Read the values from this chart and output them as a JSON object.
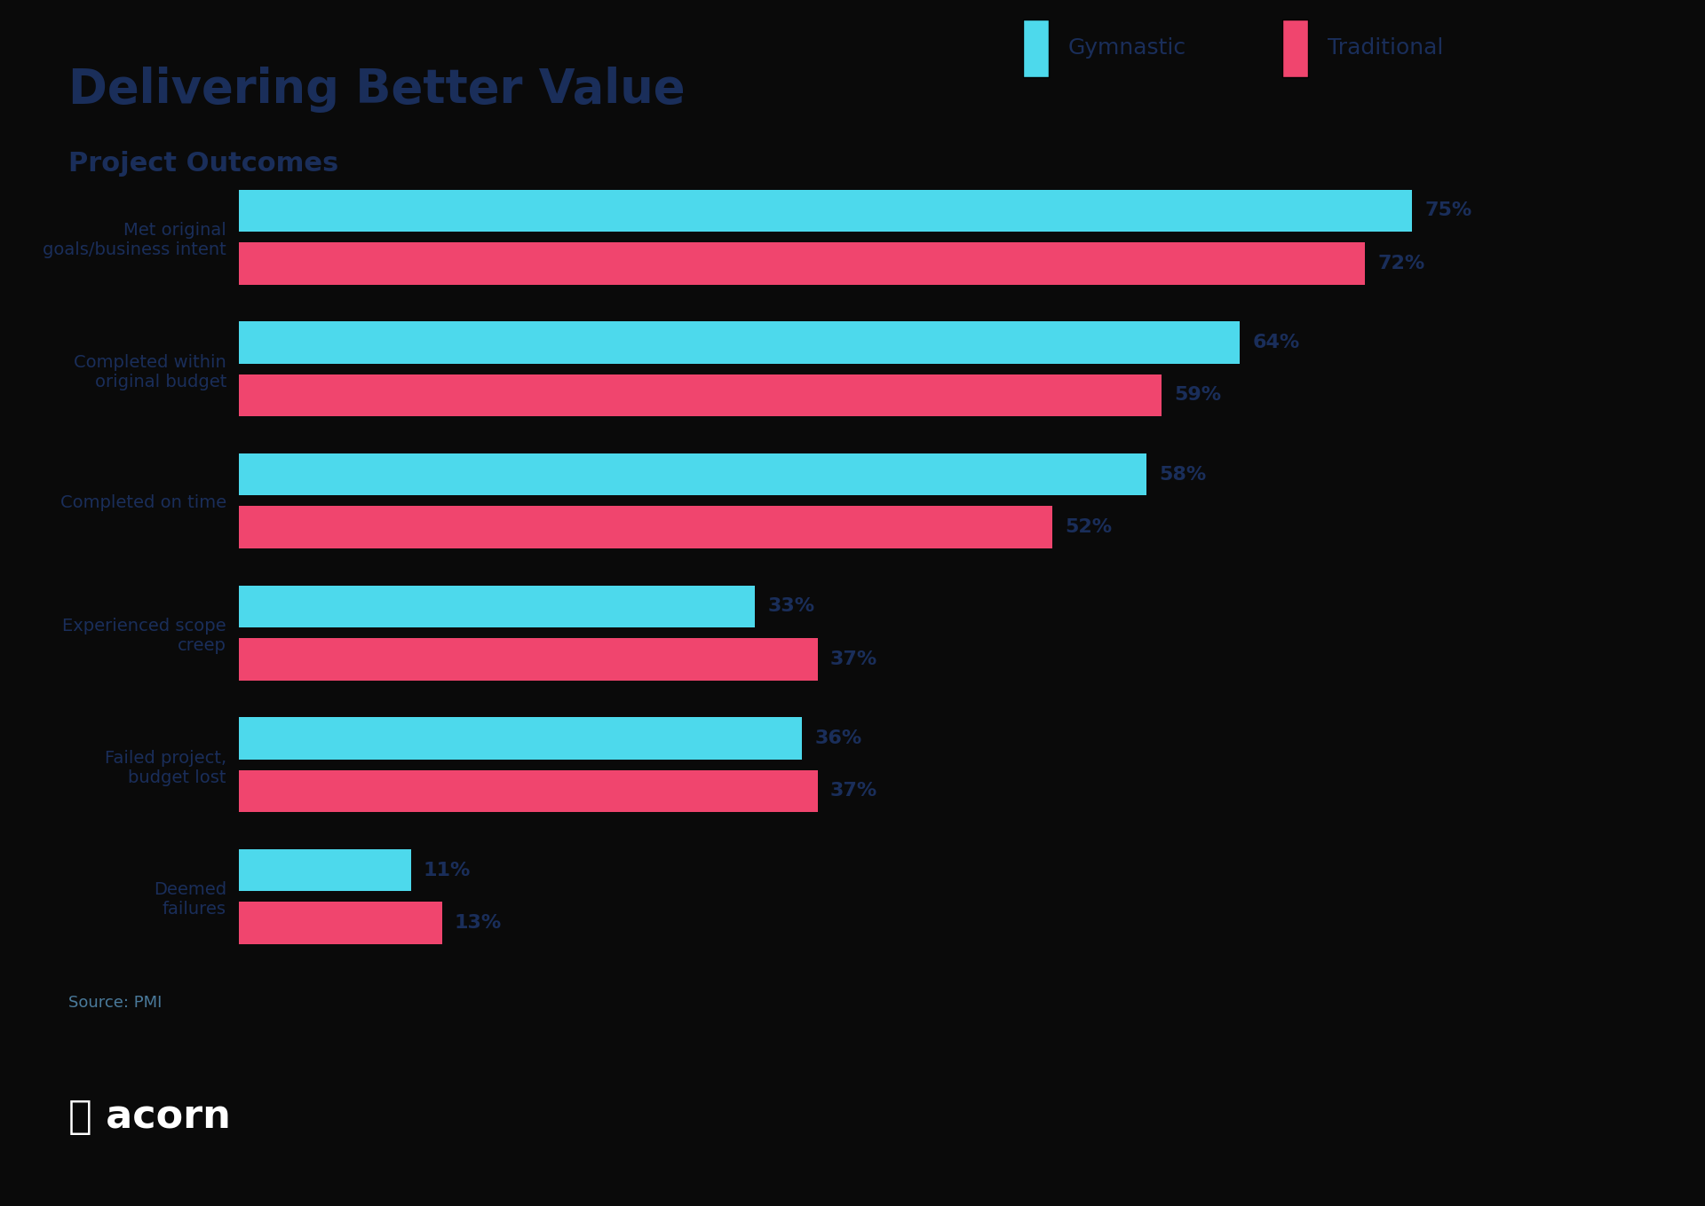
{
  "title": "Delivering Better Value",
  "subtitle": "Project Outcomes",
  "source": "Source: PMI",
  "background_color": "#0a0a0a",
  "footer_color": "#5bbfad",
  "title_color": "#1a2e5a",
  "subtitle_color": "#1a2e5a",
  "categories": [
    "Met original\ngoals/business intent",
    "Completed within\noriginal budget",
    "Completed on time",
    "Experienced scope\ncreep",
    "Failed project,\nbudget lost",
    "Deemed\nfailures"
  ],
  "gymnastic_values": [
    75,
    64,
    58,
    33,
    36,
    11
  ],
  "traditional_values": [
    72,
    59,
    52,
    37,
    37,
    13
  ],
  "gymnastic_color": "#4dd9ec",
  "traditional_color": "#f0456e",
  "legend_gymnastic": "Gymnastic",
  "legend_traditional": "Traditional",
  "bar_height": 0.32,
  "value_label_color": "#1a2e5a",
  "xlim": [
    0,
    85
  ]
}
